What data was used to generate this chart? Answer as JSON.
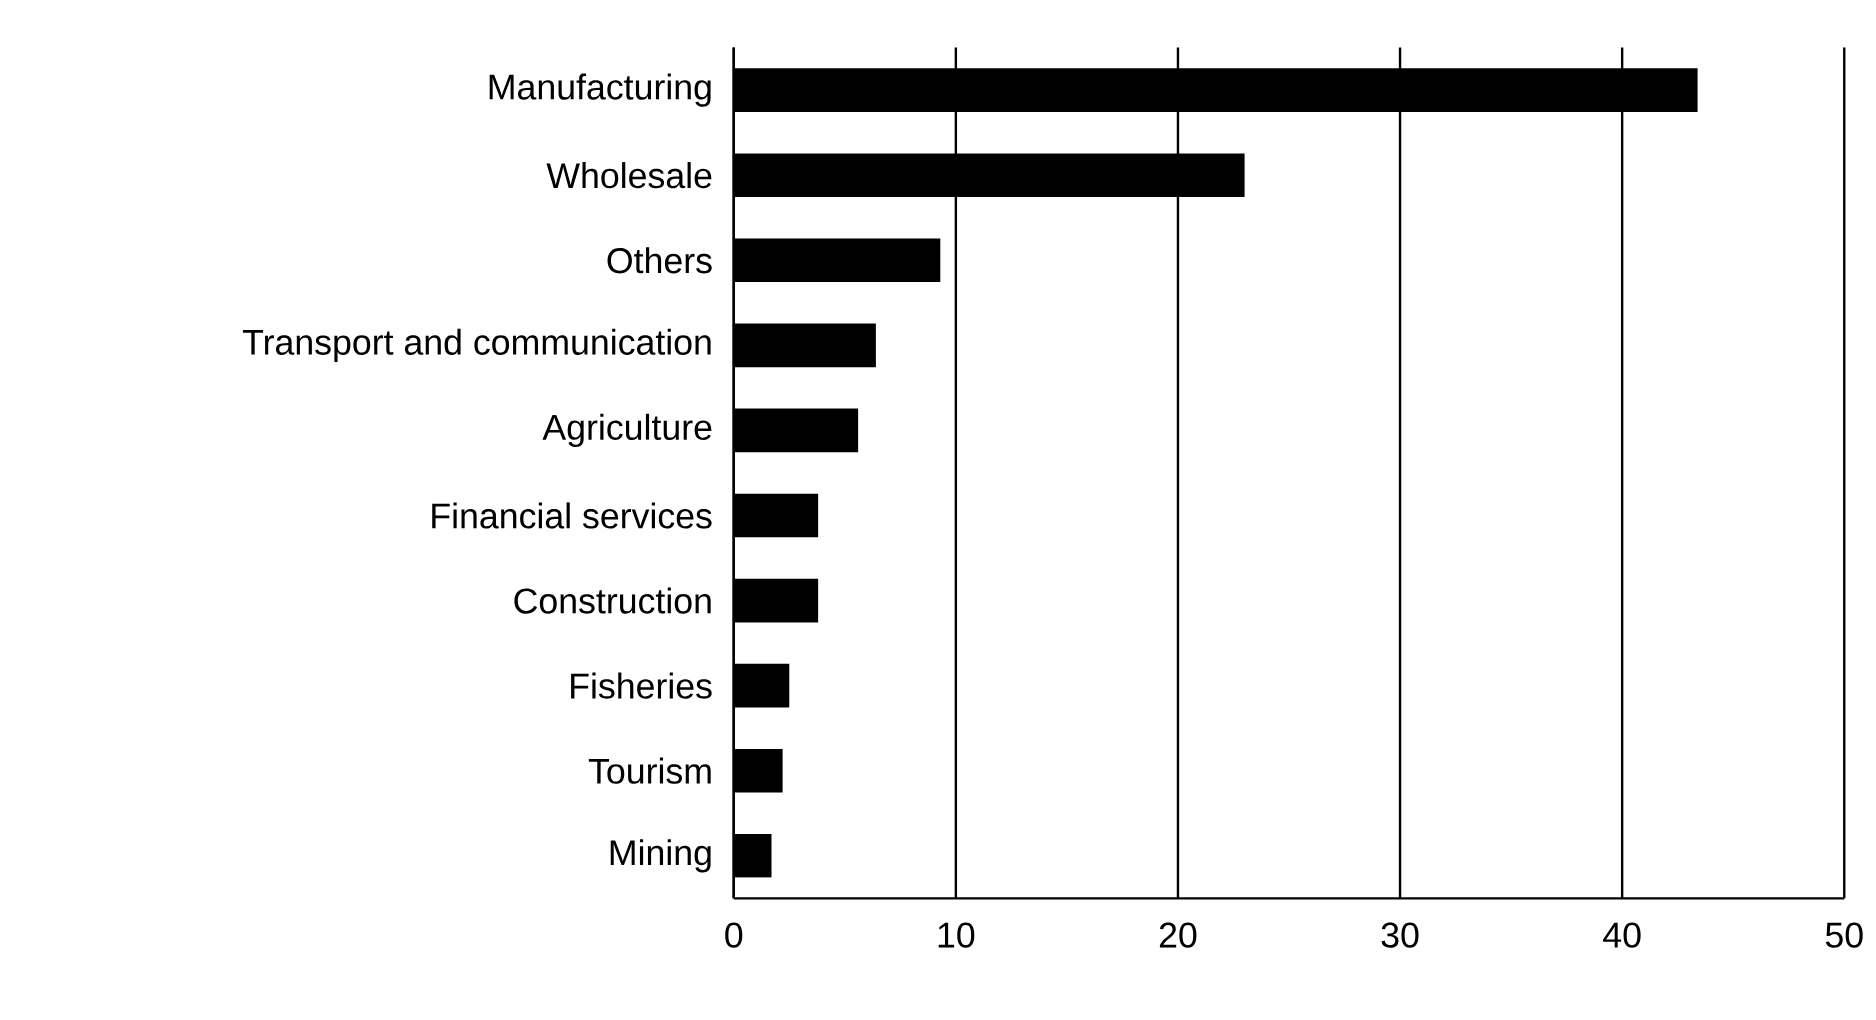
{
  "chart_data": {
    "type": "bar",
    "orientation": "horizontal",
    "categories": [
      "Manufacturing",
      "Wholesale",
      "Others",
      "Transport and communication",
      "Agriculture",
      "Financial services",
      "Construction",
      "Fisheries",
      "Tourism",
      "Mining"
    ],
    "values": [
      43.4,
      23.0,
      9.3,
      6.4,
      5.6,
      3.8,
      3.8,
      2.5,
      2.2,
      1.7
    ],
    "color": "#000000",
    "xlim": [
      0,
      50
    ],
    "xticks": [
      0,
      10,
      20,
      30,
      40,
      50
    ],
    "grid": "x"
  }
}
